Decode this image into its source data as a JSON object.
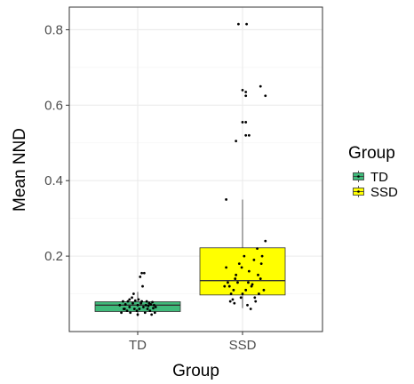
{
  "chart_data": {
    "type": "boxplot",
    "xlabel": "Group",
    "ylabel": "Mean NND",
    "categories": [
      "TD",
      "SSD"
    ],
    "ylim": [
      0.0,
      0.86
    ],
    "yticks": [
      0.2,
      0.4,
      0.6,
      0.8
    ],
    "ytick_labels": [
      "0.2",
      "0.4",
      "0.6",
      "0.8"
    ],
    "grid": true,
    "legend": {
      "title": "Group",
      "placement": "right",
      "entries": [
        "TD",
        "SSD"
      ]
    },
    "colors": {
      "TD": "#3fba7a",
      "SSD": "#ffff00"
    },
    "boxes": [
      {
        "group": "TD",
        "q1": 0.053,
        "median": 0.07,
        "q3": 0.079,
        "whisker_low": 0.04,
        "whisker_high": 0.105
      },
      {
        "group": "SSD",
        "q1": 0.097,
        "median": 0.135,
        "q3": 0.222,
        "whisker_low": 0.062,
        "whisker_high": 0.35
      }
    ],
    "points": {
      "TD": [
        [
          -0.22,
          0.07
        ],
        [
          -0.2,
          0.05
        ],
        [
          -0.18,
          0.08
        ],
        [
          -0.16,
          0.06
        ],
        [
          -0.15,
          0.072
        ],
        [
          -0.13,
          0.055
        ],
        [
          -0.12,
          0.08
        ],
        [
          -0.1,
          0.065
        ],
        [
          -0.09,
          0.05
        ],
        [
          -0.07,
          0.09
        ],
        [
          -0.06,
          0.075
        ],
        [
          -0.04,
          0.06
        ],
        [
          -0.03,
          0.082
        ],
        [
          -0.01,
          0.055
        ],
        [
          0.0,
          0.07
        ],
        [
          0.01,
          0.085
        ],
        [
          0.02,
          0.06
        ],
        [
          0.03,
          0.145
        ],
        [
          0.04,
          0.075
        ],
        [
          0.05,
          0.155
        ],
        [
          0.06,
          0.12
        ],
        [
          0.07,
          0.065
        ],
        [
          0.08,
          0.155
        ],
        [
          0.09,
          0.05
        ],
        [
          0.1,
          0.07
        ],
        [
          0.11,
          0.08
        ],
        [
          0.12,
          0.06
        ],
        [
          0.13,
          0.068
        ],
        [
          0.14,
          0.075
        ],
        [
          0.15,
          0.055
        ],
        [
          0.16,
          0.072
        ],
        [
          0.17,
          0.045
        ],
        [
          0.18,
          0.078
        ],
        [
          0.19,
          0.062
        ],
        [
          0.2,
          0.07
        ],
        [
          0.21,
          0.05
        ],
        [
          0.22,
          0.065
        ],
        [
          -0.05,
          0.1
        ],
        [
          0.0,
          0.045
        ],
        [
          -0.1,
          0.085
        ],
        [
          0.05,
          0.08
        ],
        [
          -0.17,
          0.06
        ]
      ],
      "SSD": [
        [
          -0.05,
          0.815
        ],
        [
          0.05,
          0.815
        ],
        [
          0.0,
          0.64
        ],
        [
          0.04,
          0.635
        ],
        [
          0.04,
          0.625
        ],
        [
          0.28,
          0.625
        ],
        [
          0.22,
          0.65
        ],
        [
          0.0,
          0.555
        ],
        [
          0.04,
          0.555
        ],
        [
          -0.08,
          0.505
        ],
        [
          0.04,
          0.52
        ],
        [
          0.08,
          0.52
        ],
        [
          -0.2,
          0.35
        ],
        [
          -0.2,
          0.17
        ],
        [
          -0.18,
          0.13
        ],
        [
          -0.16,
          0.12
        ],
        [
          -0.14,
          0.1
        ],
        [
          -0.12,
          0.085
        ],
        [
          -0.1,
          0.075
        ],
        [
          -0.08,
          0.15
        ],
        [
          -0.06,
          0.13
        ],
        [
          -0.04,
          0.18
        ],
        [
          -0.02,
          0.09
        ],
        [
          0.0,
          0.1
        ],
        [
          0.02,
          0.2
        ],
        [
          0.04,
          0.11
        ],
        [
          0.06,
          0.07
        ],
        [
          0.08,
          0.16
        ],
        [
          0.1,
          0.06
        ],
        [
          0.12,
          0.125
        ],
        [
          0.14,
          0.19
        ],
        [
          0.16,
          0.08
        ],
        [
          0.18,
          0.22
        ],
        [
          0.2,
          0.1
        ],
        [
          0.22,
          0.14
        ],
        [
          0.24,
          0.2
        ],
        [
          0.26,
          0.11
        ],
        [
          0.28,
          0.24
        ],
        [
          -0.22,
          0.12
        ],
        [
          -0.15,
          0.08
        ],
        [
          -0.09,
          0.14
        ],
        [
          -0.01,
          0.17
        ],
        [
          0.07,
          0.13
        ],
        [
          0.15,
          0.09
        ],
        [
          0.23,
          0.18
        ],
        [
          -0.11,
          0.11
        ],
        [
          0.11,
          0.12
        ],
        [
          0.19,
          0.15
        ]
      ]
    }
  }
}
